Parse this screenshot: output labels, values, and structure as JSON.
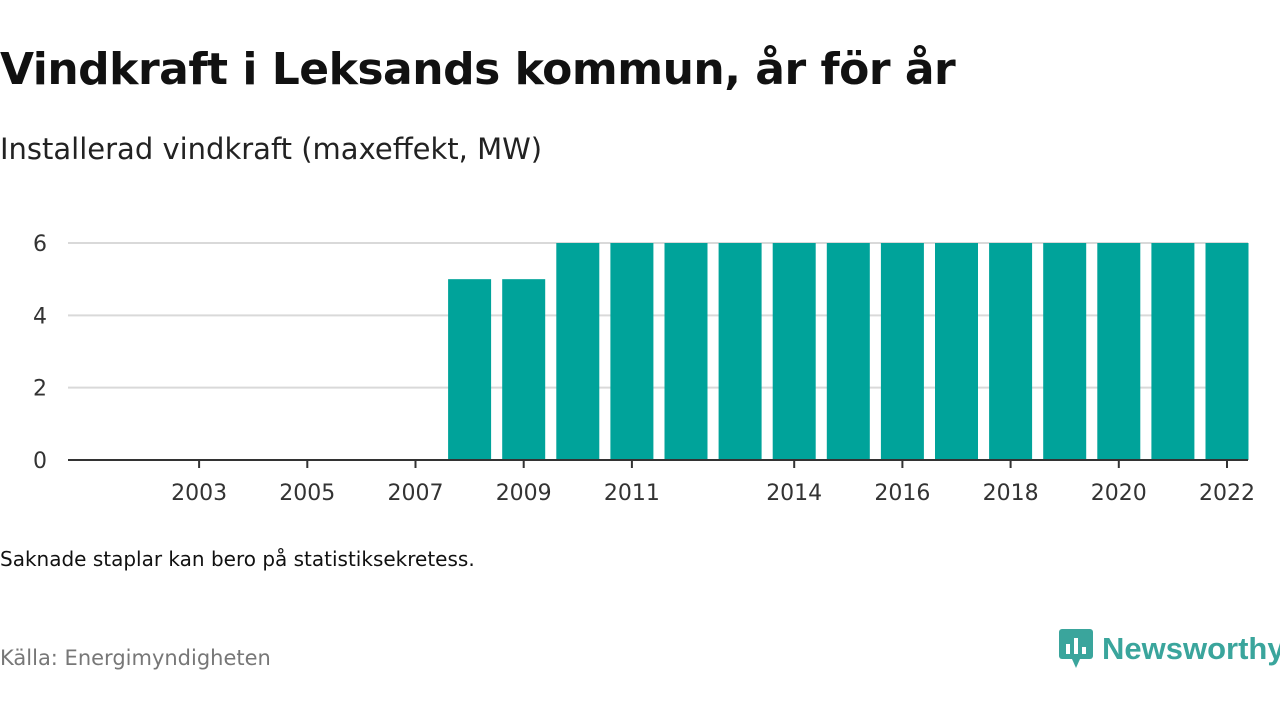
{
  "header": {
    "title": "Vindkraft i Leksands kommun, år för år",
    "subtitle": "Installerad vindkraft (maxeffekt, MW)"
  },
  "footer": {
    "note": "Saknade staplar kan bero på statistiksekretess.",
    "source": "Källa: Energimyndigheten",
    "brand": "Newsworthy"
  },
  "colors": {
    "bar": "#00a39a",
    "grid": "#d9d9d9",
    "axis": "#333333",
    "brand": "#3aa59c"
  },
  "icons": {
    "brand": "chart-bubble-icon"
  },
  "chart_data": {
    "type": "bar",
    "title": "Vindkraft i Leksands kommun, år för år",
    "subtitle": "Installerad vindkraft (maxeffekt, MW)",
    "categories": [
      2002,
      2003,
      2004,
      2005,
      2006,
      2007,
      2008,
      2009,
      2010,
      2011,
      2012,
      2013,
      2014,
      2015,
      2016,
      2017,
      2018,
      2019,
      2020,
      2021,
      2022
    ],
    "values": [
      0,
      0,
      0,
      0,
      0,
      0,
      5,
      5,
      6,
      6,
      6,
      6,
      6,
      6,
      6,
      6,
      6,
      6,
      6,
      6,
      6
    ],
    "x_tick_labels": [
      "2003",
      "2005",
      "2007",
      "2009",
      "2011",
      "2014",
      "2016",
      "2018",
      "2020",
      "2022"
    ],
    "y_ticks": [
      0,
      2,
      4,
      6
    ],
    "ylim": [
      0,
      6
    ],
    "grid": true,
    "xlabel": "",
    "ylabel": ""
  }
}
